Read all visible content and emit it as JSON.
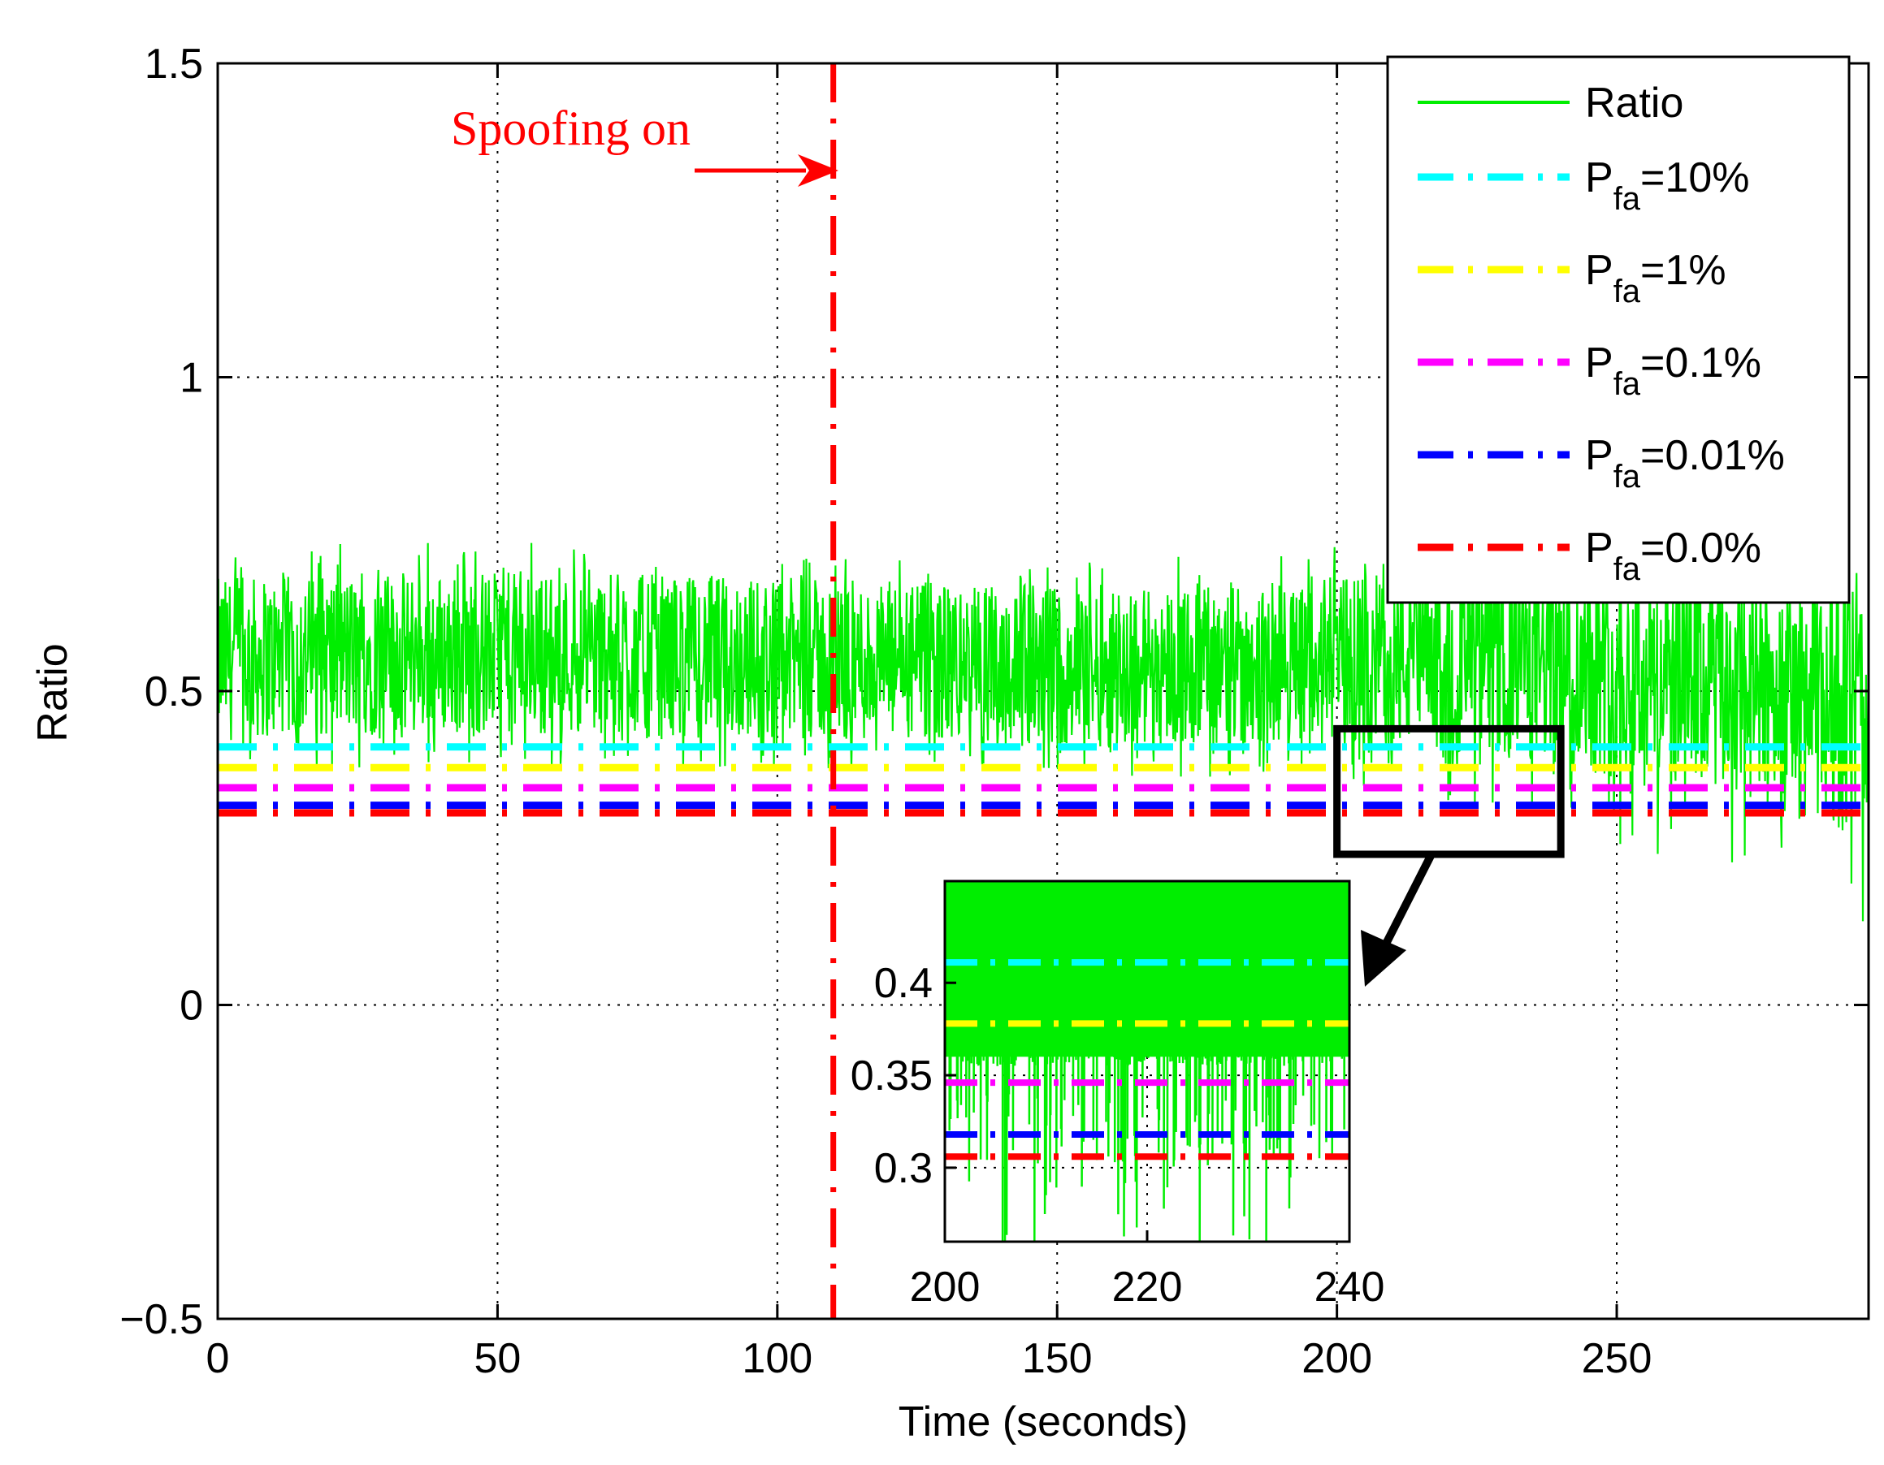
{
  "chart_data": {
    "type": "line",
    "xlabel": "Time (seconds)",
    "ylabel": "Ratio",
    "xlim": [
      0,
      295
    ],
    "ylim": [
      -0.5,
      1.5
    ],
    "xticks": [
      0,
      50,
      100,
      150,
      200,
      250
    ],
    "yticks": [
      -0.5,
      0,
      0.5,
      1,
      1.5
    ],
    "x_tick_labels": [
      "0",
      "50",
      "100",
      "150",
      "200",
      "250"
    ],
    "y_tick_labels": [
      "−0.5",
      "0",
      "0.5",
      "1",
      "1.5"
    ],
    "grid": true,
    "colors": {
      "ratio": "#00ee00",
      "pfa10": "#00ffff",
      "pfa1": "#ffff00",
      "pfa01": "#ff00ff",
      "pfa001": "#0000ff",
      "pfa00": "#ff0000",
      "spoof": "#ff0000",
      "axis": "#000000"
    },
    "series": [
      {
        "name": "Ratio",
        "key": "ratio",
        "x_range": [
          0,
          295
        ],
        "mean_start": 0.55,
        "mean_end": 0.46,
        "spread_start": 0.13,
        "spread_end": 0.2,
        "min_dip": 0.12
      }
    ],
    "thresholds": [
      {
        "key": "pfa10",
        "label": "P",
        "sub": "fa",
        "suffix": "=10%",
        "value": 0.411
      },
      {
        "key": "pfa1",
        "label": "P",
        "sub": "fa",
        "suffix": "=1%",
        "value": 0.378
      },
      {
        "key": "pfa01",
        "label": "P",
        "sub": "fa",
        "suffix": "=0.1%",
        "value": 0.346
      },
      {
        "key": "pfa001",
        "label": "P",
        "sub": "fa",
        "suffix": "=0.01%",
        "value": 0.318
      },
      {
        "key": "pfa00",
        "label": "P",
        "sub": "fa",
        "suffix": "=0.0%",
        "value": 0.306
      }
    ],
    "legend": {
      "position": "top-right",
      "ratio_label": "Ratio"
    },
    "event": {
      "label": "Spoofing on",
      "x": 110
    },
    "zoom_region": {
      "x": [
        200,
        240
      ],
      "y": [
        0.24,
        0.44
      ]
    },
    "inset": {
      "xlim": [
        200,
        240
      ],
      "ylim": [
        0.26,
        0.455
      ],
      "xticks": [
        200,
        220,
        240
      ],
      "yticks": [
        0.3,
        0.35,
        0.4
      ],
      "x_tick_labels": [
        "200",
        "220",
        "240"
      ],
      "y_tick_labels": [
        "0.3",
        "0.35",
        "0.4"
      ]
    }
  }
}
